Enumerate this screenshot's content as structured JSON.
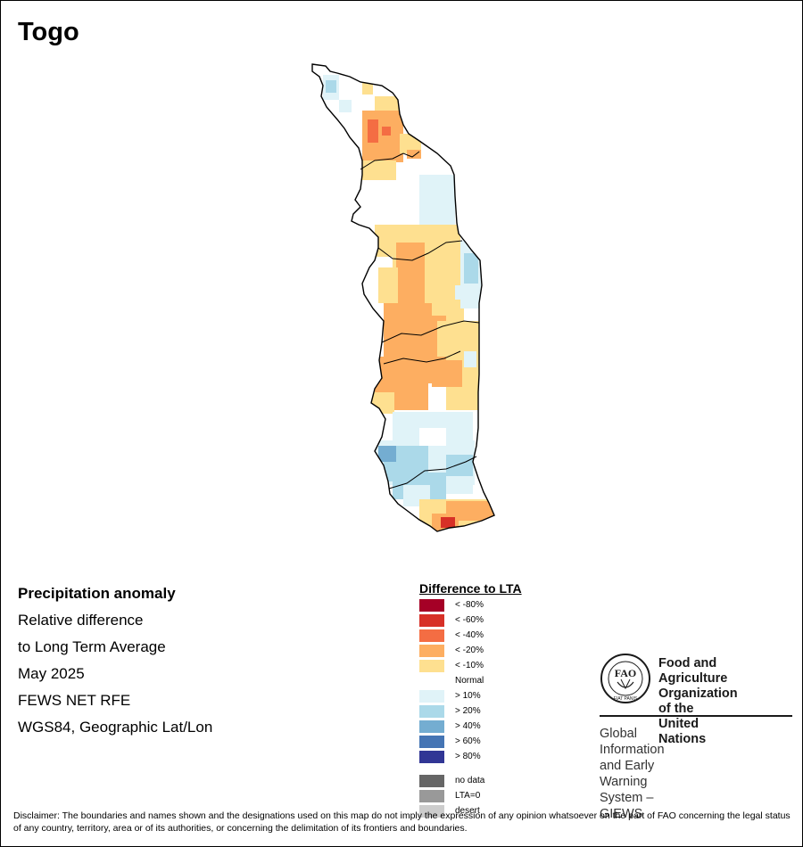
{
  "title": "Togo",
  "info": {
    "line1": "Precipitation anomaly",
    "line2": "Relative difference",
    "line3": "to Long Term Average",
    "line4": "May 2025",
    "line5": "FEWS NET RFE",
    "line6": "WGS84, Geographic Lat/Lon"
  },
  "legend": {
    "title": "Difference to LTA",
    "items": [
      {
        "label": "< -80%",
        "color": "#a50026"
      },
      {
        "label": "< -60%",
        "color": "#d73027"
      },
      {
        "label": "< -40%",
        "color": "#f46d43"
      },
      {
        "label": "< -20%",
        "color": "#fdae61"
      },
      {
        "label": "< -10%",
        "color": "#fee090"
      },
      {
        "label": "Normal",
        "color": "#ffffff"
      },
      {
        "label": "> 10%",
        "color": "#e0f3f8"
      },
      {
        "label": "> 20%",
        "color": "#abd9e9"
      },
      {
        "label": "> 40%",
        "color": "#74add1"
      },
      {
        "label": "> 60%",
        "color": "#4575b4"
      },
      {
        "label": "> 80%",
        "color": "#313695"
      }
    ],
    "extra": [
      {
        "label": "no data",
        "color": "#666666"
      },
      {
        "label": "LTA=0",
        "color": "#999999"
      },
      {
        "label": "desert",
        "color": "#cccccc"
      }
    ]
  },
  "logo": {
    "org_line1": "Food and Agriculture",
    "org_line2": "Organization of the",
    "org_line3": "United Nations",
    "system_line1": "Global Information and Early",
    "system_line2": "Warning System – GIEWS",
    "emblem_letters": "FAO",
    "emblem_motto": "FIAT PANIS"
  },
  "disclaimer": "Disclaimer: The boundaries and names shown and the designations used on this map do not imply the expression of any opinion whatsoever on the part of FAO concerning the legal status of any country, territory, area or of its authorities, or concerning the delimitation of its frontiers and boundaries."
}
